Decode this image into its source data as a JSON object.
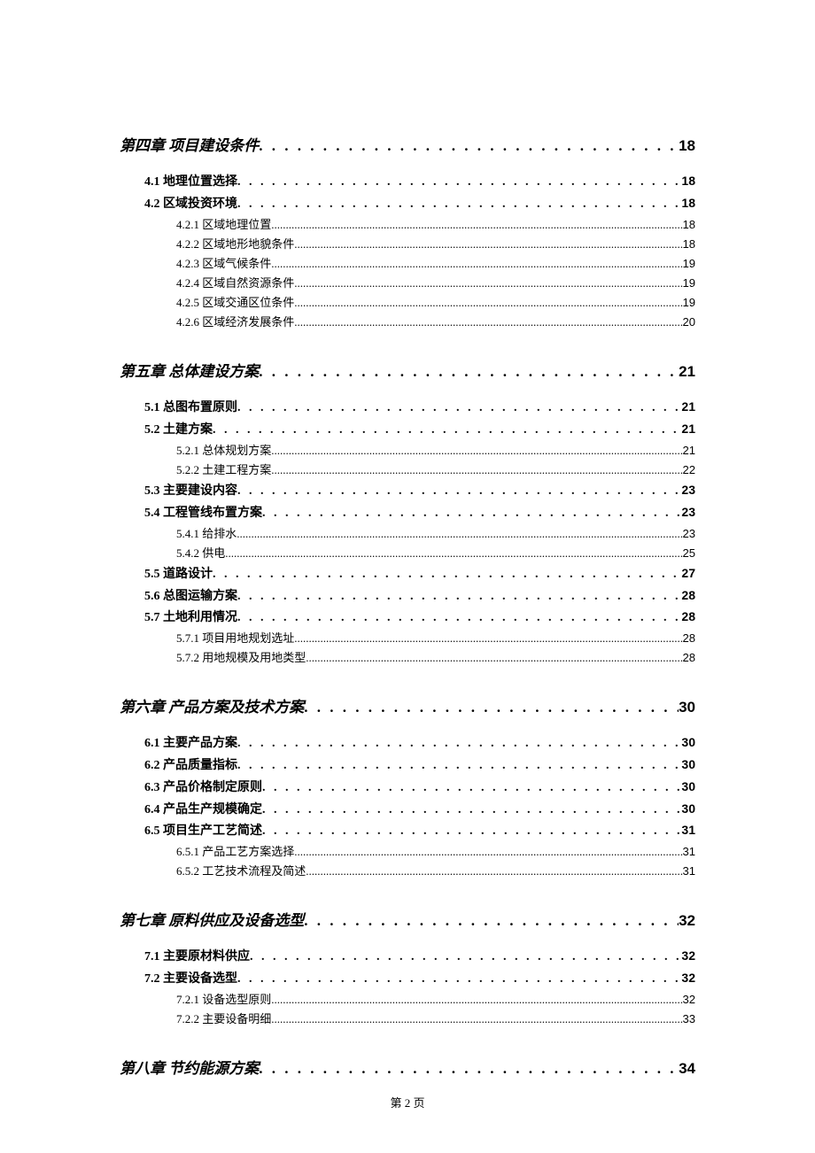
{
  "footer": "第 2 页",
  "dots_sparse": ". . . . . . . . . . . . . . . . . . . . . . . . . . . . . . . . . . . . . . . . . . . . . . . . . . . . . . . . . . . . . . . . . . . . . . . . . . . . . . . . . . . . . . . . . . . . . . . . . . . .",
  "dots_dense": "...........................................................................................................................................................................",
  "entries": [
    {
      "level": "chapter",
      "title": "第四章 项目建设条件",
      "page": "18"
    },
    {
      "level": "section",
      "title": "4.1 地理位置选择",
      "page": "18"
    },
    {
      "level": "section",
      "title": "4.2 区域投资环境",
      "page": "18"
    },
    {
      "level": "subsection",
      "title": "4.2.1 区域地理位置",
      "page": "18"
    },
    {
      "level": "subsection",
      "title": "4.2.2 区域地形地貌条件",
      "page": "18"
    },
    {
      "level": "subsection",
      "title": "4.2.3 区域气候条件",
      "page": "19"
    },
    {
      "level": "subsection",
      "title": "4.2.4 区域自然资源条件",
      "page": "19"
    },
    {
      "level": "subsection",
      "title": "4.2.5 区域交通区位条件",
      "page": "19"
    },
    {
      "level": "subsection",
      "title": "4.2.6 区域经济发展条件",
      "page": "20"
    },
    {
      "level": "chapter",
      "title": "第五章 总体建设方案",
      "page": "21"
    },
    {
      "level": "section",
      "title": "5.1 总图布置原则",
      "page": "21"
    },
    {
      "level": "section",
      "title": "5.2 土建方案",
      "page": "21"
    },
    {
      "level": "subsection",
      "title": "5.2.1 总体规划方案",
      "page": "21"
    },
    {
      "level": "subsection",
      "title": "5.2.2 土建工程方案",
      "page": "22"
    },
    {
      "level": "section",
      "title": "5.3 主要建设内容",
      "page": "23"
    },
    {
      "level": "section",
      "title": "5.4 工程管线布置方案",
      "page": "23"
    },
    {
      "level": "subsection",
      "title": "5.4.1 给排水",
      "page": "23"
    },
    {
      "level": "subsection",
      "title": "5.4.2 供电",
      "page": "25"
    },
    {
      "level": "section",
      "title": "5.5 道路设计",
      "page": "27"
    },
    {
      "level": "section",
      "title": "5.6 总图运输方案",
      "page": "28"
    },
    {
      "level": "section",
      "title": "5.7 土地利用情况",
      "page": "28"
    },
    {
      "level": "subsection",
      "title": "5.7.1 项目用地规划选址",
      "page": "28"
    },
    {
      "level": "subsection",
      "title": "5.7.2 用地规模及用地类型",
      "page": "28"
    },
    {
      "level": "chapter",
      "title": "第六章 产品方案及技术方案",
      "page": "30"
    },
    {
      "level": "section",
      "title": "6.1 主要产品方案",
      "page": "30"
    },
    {
      "level": "section",
      "title": "6.2 产品质量指标",
      "page": "30"
    },
    {
      "level": "section",
      "title": "6.3 产品价格制定原则",
      "page": "30"
    },
    {
      "level": "section",
      "title": "6.4 产品生产规模确定",
      "page": "30"
    },
    {
      "level": "section",
      "title": "6.5 项目生产工艺简述",
      "page": "31"
    },
    {
      "level": "subsection",
      "title": "6.5.1 产品工艺方案选择",
      "page": "31"
    },
    {
      "level": "subsection",
      "title": "6.5.2 工艺技术流程及简述",
      "page": "31"
    },
    {
      "level": "chapter",
      "title": "第七章 原料供应及设备选型",
      "page": "32"
    },
    {
      "level": "section",
      "title": "7.1 主要原材料供应",
      "page": "32"
    },
    {
      "level": "section",
      "title": "7.2 主要设备选型",
      "page": "32"
    },
    {
      "level": "subsection",
      "title": "7.2.1 设备选型原则",
      "page": "32"
    },
    {
      "level": "subsection",
      "title": "7.2.2 主要设备明细",
      "page": "33"
    },
    {
      "level": "chapter",
      "title": "第八章 节约能源方案",
      "page": "34"
    }
  ]
}
